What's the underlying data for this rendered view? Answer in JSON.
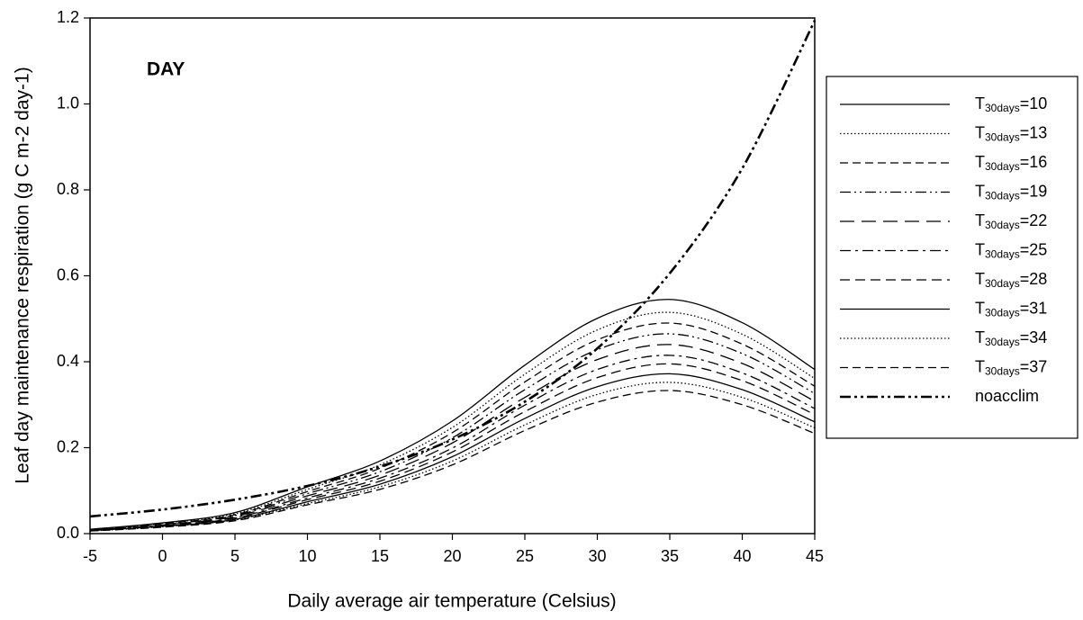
{
  "chart_data": {
    "type": "line",
    "annotation": "DAY",
    "x_label": "Daily average air temperature (Celsius)",
    "y_label": "Leaf day maintenance respiration (g C m-2 day-1)",
    "x": [
      -5,
      0,
      5,
      10,
      15,
      20,
      25,
      30,
      35,
      40,
      45
    ],
    "xlim": [
      -5,
      45
    ],
    "xticks": [
      -5,
      0,
      5,
      10,
      15,
      20,
      25,
      30,
      35,
      40,
      45
    ],
    "ylim": [
      0,
      1.2
    ],
    "yticks": [
      {
        "value": 0,
        "label": "0.0"
      },
      0.2,
      0.4,
      0.6,
      0.8,
      {
        "value": 1,
        "label": "1.0"
      },
      1.2
    ],
    "grid": false,
    "legend": "right",
    "series": [
      {
        "name": "T30days=10",
        "color": "#000000",
        "style": "solid",
        "values": [
          0.01,
          0.025,
          0.049,
          0.109,
          0.169,
          0.262,
          0.392,
          0.501,
          0.545,
          0.491,
          0.382
        ]
      },
      {
        "name": "T30days=13",
        "color": "#000000",
        "style": "dotted",
        "values": [
          0.009,
          0.024,
          0.046,
          0.103,
          0.16,
          0.247,
          0.371,
          0.474,
          0.515,
          0.464,
          0.361
        ]
      },
      {
        "name": "T30days=16",
        "color": "#000000",
        "style": "dashed",
        "values": [
          0.009,
          0.023,
          0.044,
          0.098,
          0.152,
          0.235,
          0.353,
          0.451,
          0.49,
          0.441,
          0.343
        ]
      },
      {
        "name": "T30days=19",
        "color": "#000000",
        "style": "dashdotdot",
        "values": [
          0.008,
          0.021,
          0.042,
          0.093,
          0.144,
          0.223,
          0.335,
          0.428,
          0.465,
          0.419,
          0.326
        ]
      },
      {
        "name": "T30days=22",
        "color": "#000000",
        "style": "longdash",
        "values": [
          0.008,
          0.02,
          0.04,
          0.088,
          0.136,
          0.211,
          0.317,
          0.405,
          0.44,
          0.396,
          0.308
        ]
      },
      {
        "name": "T30days=25",
        "color": "#000000",
        "style": "dashdot",
        "values": [
          0.007,
          0.019,
          0.037,
          0.083,
          0.129,
          0.199,
          0.299,
          0.382,
          0.415,
          0.374,
          0.291
        ]
      },
      {
        "name": "T30days=28",
        "color": "#000000",
        "style": "mediumdash",
        "values": [
          0.007,
          0.018,
          0.036,
          0.079,
          0.122,
          0.19,
          0.284,
          0.363,
          0.395,
          0.356,
          0.277
        ]
      },
      {
        "name": "T30days=31",
        "color": "#000000",
        "style": "solid",
        "values": [
          0.007,
          0.017,
          0.033,
          0.074,
          0.115,
          0.179,
          0.268,
          0.342,
          0.372,
          0.335,
          0.26
        ]
      },
      {
        "name": "T30days=34",
        "color": "#000000",
        "style": "dotted",
        "values": [
          0.006,
          0.016,
          0.032,
          0.07,
          0.109,
          0.169,
          0.253,
          0.324,
          0.352,
          0.317,
          0.246
        ]
      },
      {
        "name": "T30days=37",
        "color": "#000000",
        "style": "dashed",
        "values": [
          0.006,
          0.015,
          0.03,
          0.067,
          0.103,
          0.16,
          0.24,
          0.306,
          0.333,
          0.3,
          0.233
        ]
      },
      {
        "name": "noacclim",
        "color": "#000000",
        "style": "heavydashdotdot",
        "values": [
          0.04,
          0.056,
          0.079,
          0.111,
          0.156,
          0.219,
          0.307,
          0.431,
          0.606,
          0.85,
          1.194
        ]
      }
    ]
  }
}
